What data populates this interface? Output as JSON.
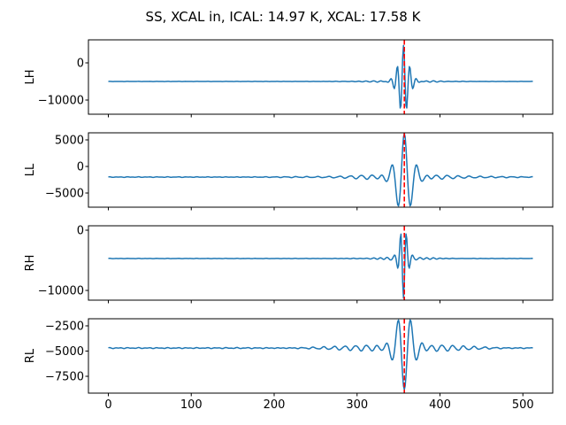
{
  "title": "SS, XCAL in, ICAL: 14.97 K, XCAL: 17.58 K",
  "colors": {
    "signal_line": "#1f77b4",
    "marker_line": "#ff0000",
    "axes": "#000000",
    "text": "#000000",
    "background": "#ffffff"
  },
  "chart_data": {
    "type": "line",
    "title": "SS, XCAL in, ICAL: 14.97 K, XCAL: 17.58 K",
    "grid": false,
    "legend": null,
    "x_samples": {
      "start": 0,
      "end": 512,
      "step": 1
    },
    "xlim": [
      -24,
      536
    ],
    "xticks": [
      {
        "value": 0,
        "label": "0"
      },
      {
        "value": 100,
        "label": "100"
      },
      {
        "value": 200,
        "label": "200"
      },
      {
        "value": 300,
        "label": "300"
      },
      {
        "value": 400,
        "label": "400"
      },
      {
        "value": 500,
        "label": "500"
      }
    ],
    "marker_line": {
      "x": 357,
      "style": "dashed",
      "color": "#ff0000"
    },
    "subplots": [
      {
        "ylabel": "LH",
        "ylim": [
          -13810,
          6190
        ],
        "yticks": [
          {
            "value": 0,
            "label": "0"
          },
          {
            "value": -10000,
            "label": "−10000"
          }
        ],
        "signal": {
          "baseline": -5000,
          "pulse_center": 356,
          "approx_peak": 4300,
          "approx_trough": -11400,
          "amplitude": 9300,
          "period": 7.5,
          "env_width": 5,
          "ripple_amplitude": 350,
          "ripple_period": 9,
          "ripple_width": 25,
          "noise": 30
        }
      },
      {
        "ylabel": "LL",
        "ylim": [
          -7667,
          6333
        ],
        "yticks": [
          {
            "value": 5000,
            "label": "5000"
          },
          {
            "value": 0,
            "label": "0"
          },
          {
            "value": -5000,
            "label": "−5000"
          }
        ],
        "signal": {
          "baseline": -2000,
          "pulse_center": 357,
          "approx_peak": 5500,
          "approx_trough": -6700,
          "amplitude": 7500,
          "period": 16,
          "env_width": 7.6,
          "ripple_amplitude": 700,
          "ripple_period": 13,
          "ripple_width": 40,
          "noise": 60
        }
      },
      {
        "ylabel": "RH",
        "ylim": [
          -11615,
          735
        ],
        "yticks": [
          {
            "value": 0,
            "label": "0"
          },
          {
            "value": -10000,
            "label": "−10000"
          }
        ],
        "signal": {
          "baseline": -4700,
          "pulse_center": 356,
          "approx_peak": -900,
          "approx_trough": -11000,
          "amplitude": -6300,
          "period": 7,
          "env_width": 3.2,
          "ripple_amplitude": -300,
          "ripple_period": 8,
          "ripple_width": 20,
          "noise": 30
        }
      },
      {
        "ylabel": "RL",
        "ylim": [
          -9166,
          -1798
        ],
        "yticks": [
          {
            "value": -2500,
            "label": "−2500"
          },
          {
            "value": -5000,
            "label": "−5000"
          },
          {
            "value": -7500,
            "label": "−7500"
          }
        ],
        "signal": {
          "baseline": -4700,
          "pulse_center": 357,
          "approx_peak": -2300,
          "approx_trough": -8400,
          "amplitude": -3700,
          "period": 16,
          "env_width": 7.6,
          "ripple_amplitude": -450,
          "ripple_period": 13,
          "ripple_width": 45,
          "noise": 50
        }
      }
    ]
  }
}
